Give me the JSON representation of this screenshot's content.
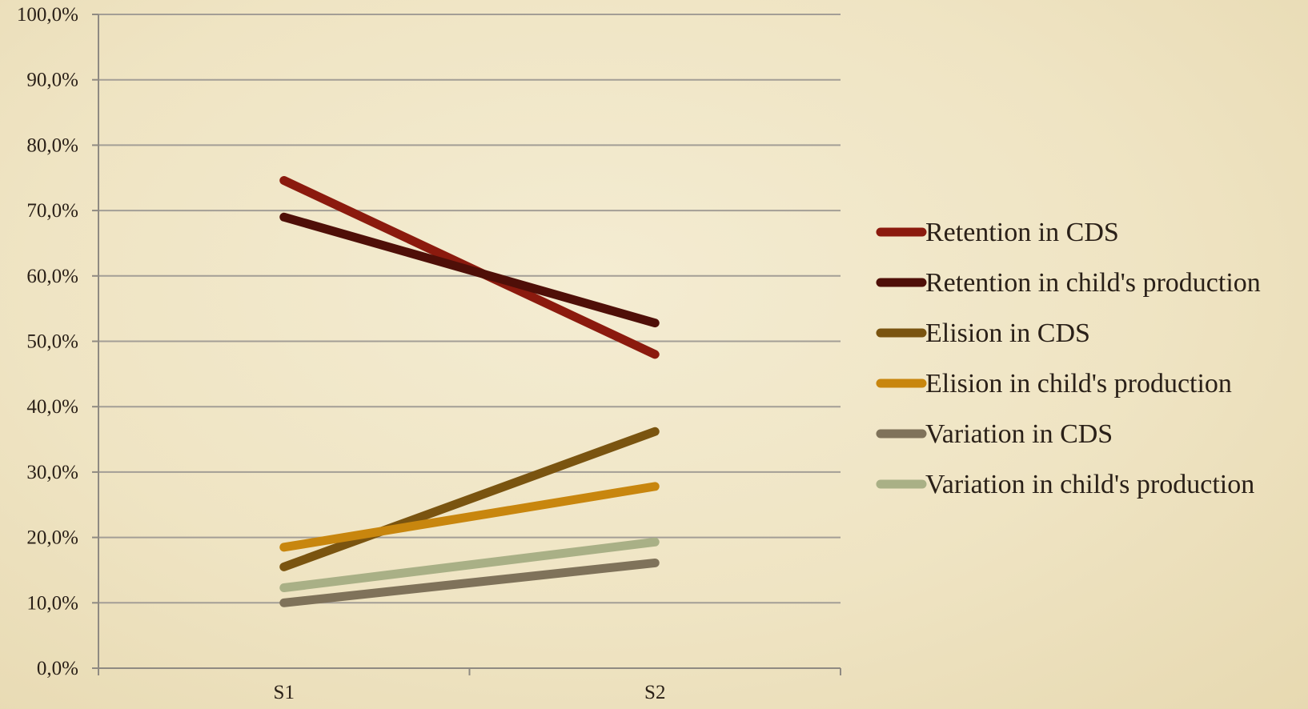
{
  "chart_data": {
    "type": "line",
    "title": "",
    "xlabel": "",
    "ylabel": "",
    "categories": [
      "S1",
      "S2"
    ],
    "ylim": [
      0,
      100
    ],
    "y_ticks": [
      "0,0%",
      "10,0%",
      "20,0%",
      "30,0%",
      "40,0%",
      "50,0%",
      "60,0%",
      "70,0%",
      "80,0%",
      "90,0%",
      "100,0%"
    ],
    "grid": true,
    "legend_position": "right",
    "series": [
      {
        "name": "Retention in CDS",
        "values": [
          74.6,
          48.0
        ],
        "color": "#8b1a0e"
      },
      {
        "name": "Retention in child's production",
        "values": [
          69.0,
          52.8
        ],
        "color": "#4f0f08"
      },
      {
        "name": "Elision in CDS",
        "values": [
          15.5,
          36.2
        ],
        "color": "#7a5410"
      },
      {
        "name": "Elision in child's production",
        "values": [
          18.5,
          27.8
        ],
        "color": "#c8860e"
      },
      {
        "name": "Variation in CDS",
        "values": [
          10.0,
          16.1
        ],
        "color": "#7f725a"
      },
      {
        "name": "Variation in child's production",
        "values": [
          12.3,
          19.3
        ],
        "color": "#a9b086"
      }
    ]
  }
}
